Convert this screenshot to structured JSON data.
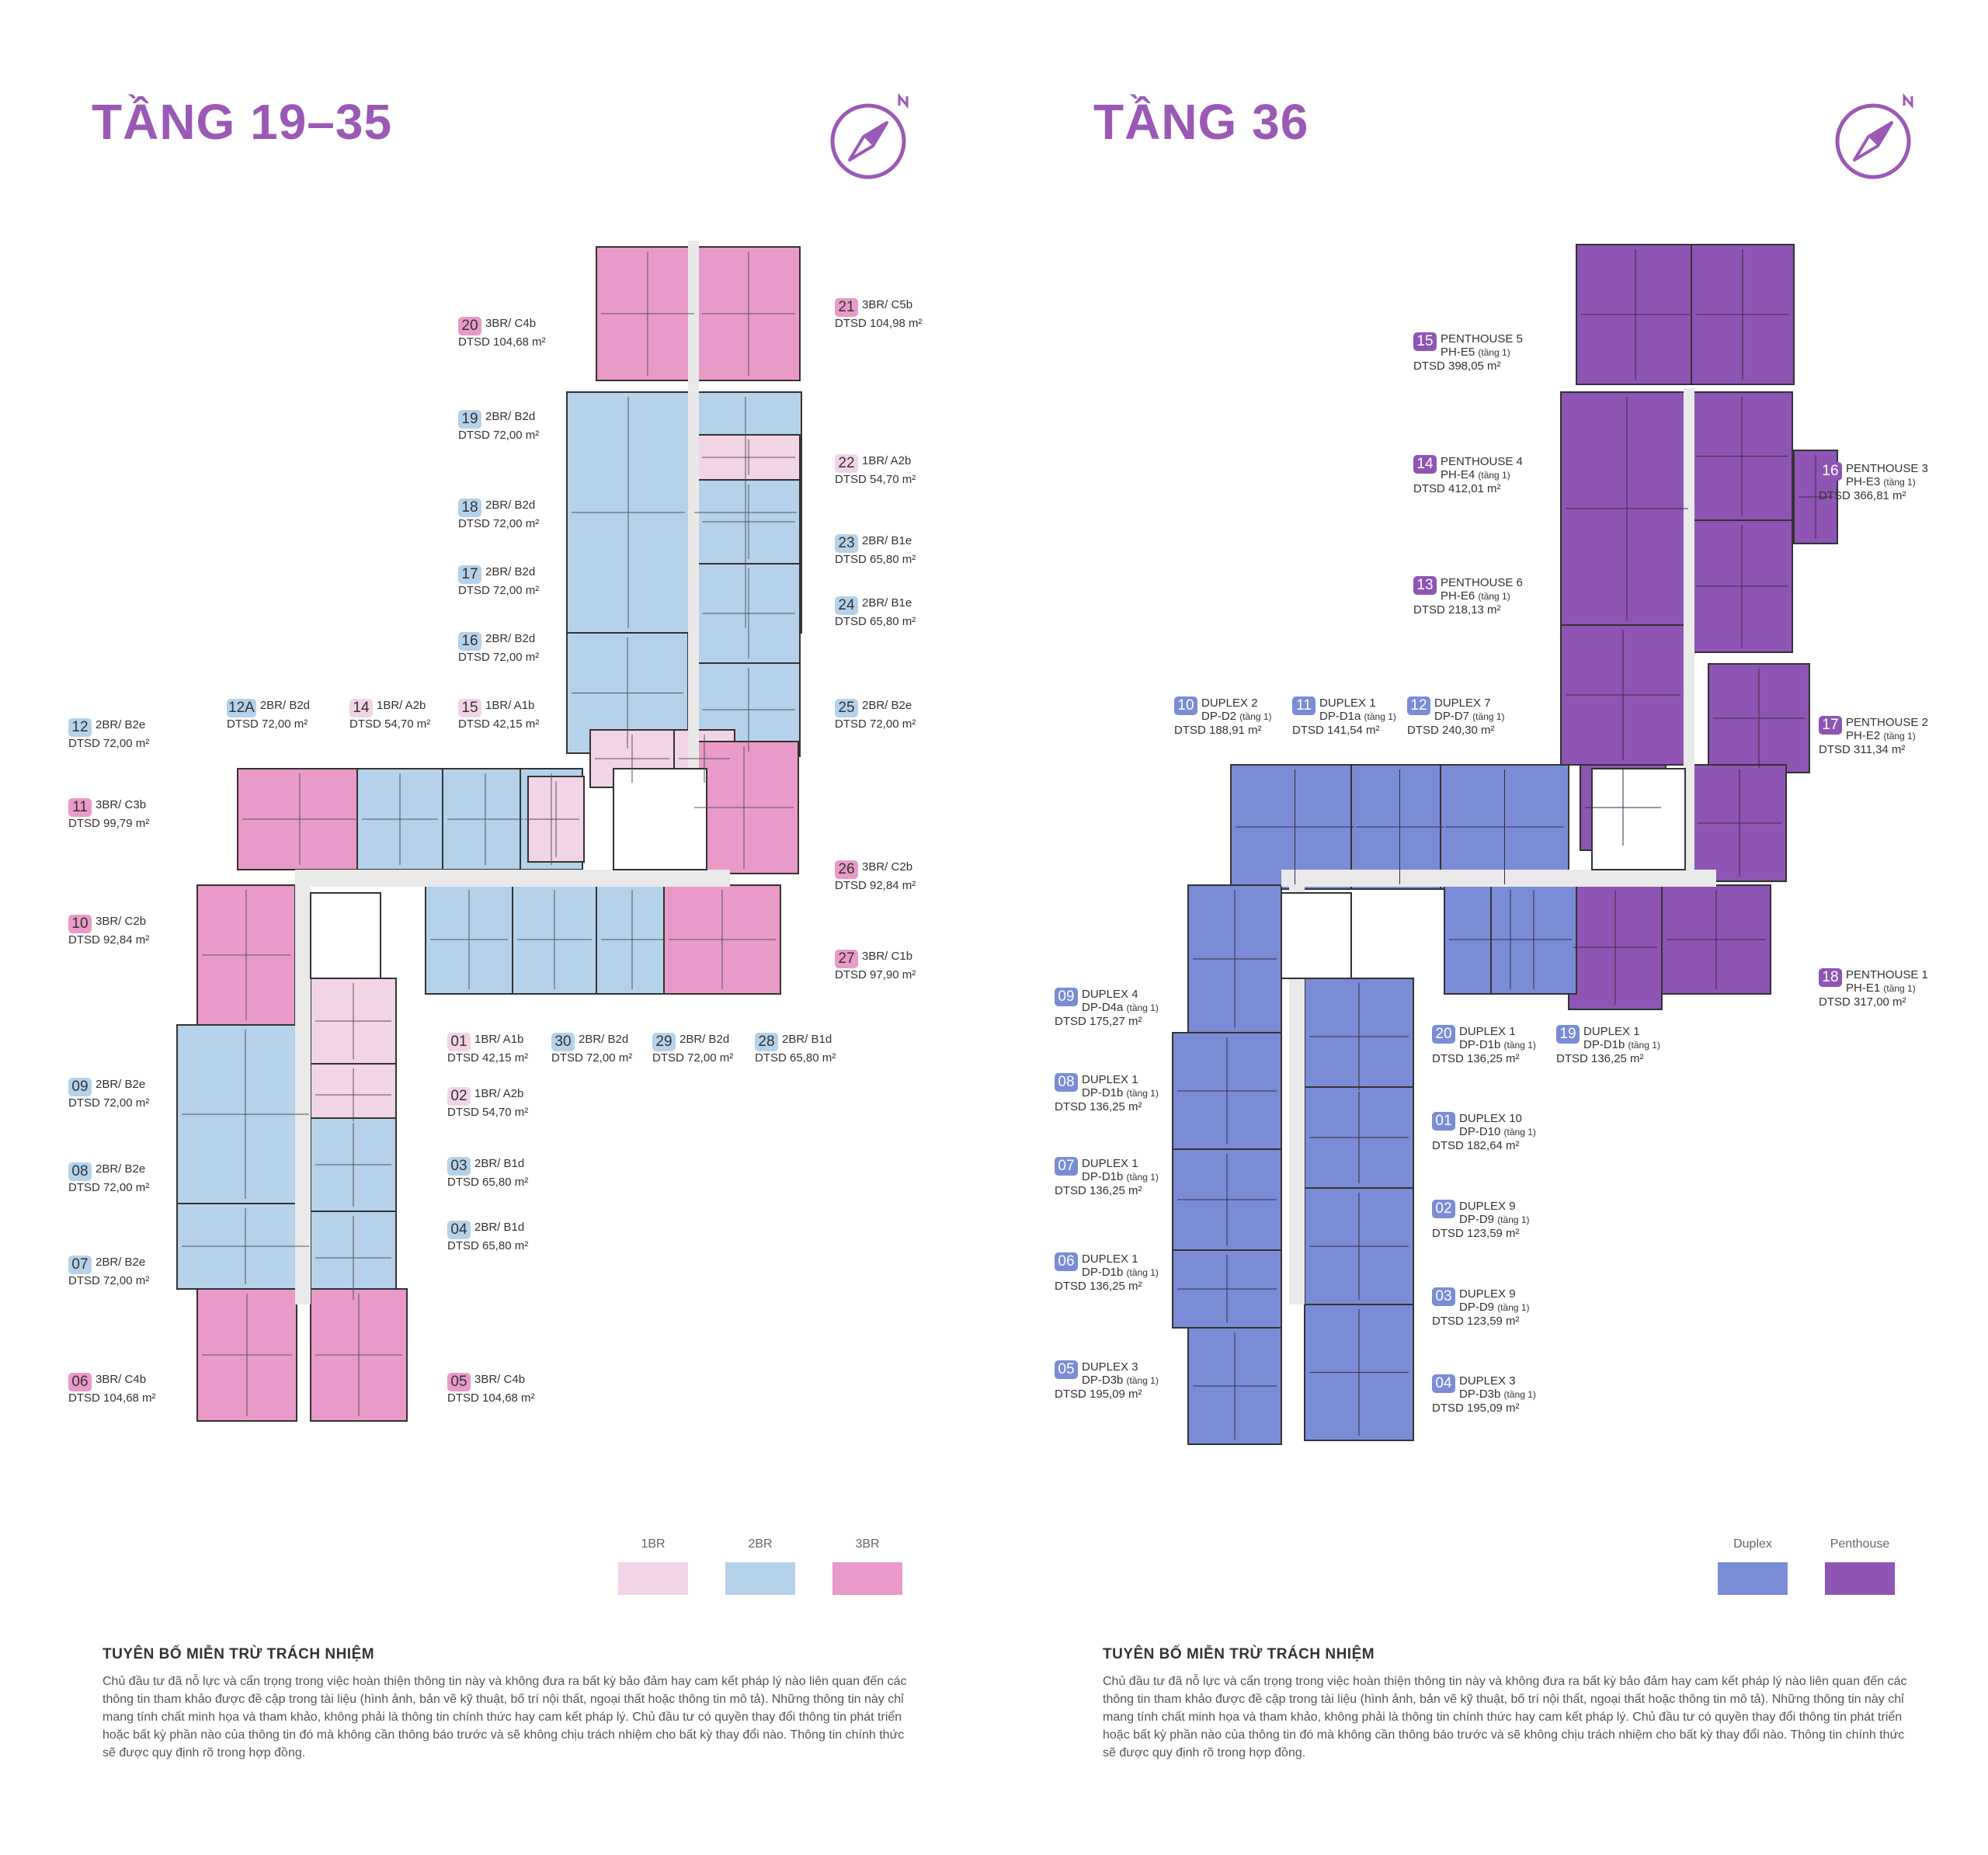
{
  "colors": {
    "title": "#9b59b6",
    "br1": "#f1d4e6",
    "br2": "#b5d2ea",
    "br3": "#e99ac8",
    "duplex": "#7b8cd6",
    "penthouse": "#8e55b4",
    "corridor": "#e9e9e9",
    "wall": "#333333"
  },
  "left": {
    "title": "TẦNG 19–35",
    "compass_icon": "compass-icon",
    "units": [
      {
        "num": "20",
        "type": "3BR/ C4b",
        "area": "DTSD 104,68 m²",
        "cat": "3BR"
      },
      {
        "num": "21",
        "type": "3BR/ C5b",
        "area": "DTSD 104,98 m²",
        "cat": "3BR"
      },
      {
        "num": "19",
        "type": "2BR/ B2d",
        "area": "DTSD 72,00 m²",
        "cat": "2BR"
      },
      {
        "num": "22",
        "type": "1BR/ A2b",
        "area": "DTSD 54,70 m²",
        "cat": "1BR"
      },
      {
        "num": "18",
        "type": "2BR/ B2d",
        "area": "DTSD 72,00 m²",
        "cat": "2BR"
      },
      {
        "num": "23",
        "type": "2BR/ B1e",
        "area": "DTSD 65,80 m²",
        "cat": "2BR"
      },
      {
        "num": "17",
        "type": "2BR/ B2d",
        "area": "DTSD 72,00 m²",
        "cat": "2BR"
      },
      {
        "num": "24",
        "type": "2BR/ B1e",
        "area": "DTSD 65,80 m²",
        "cat": "2BR"
      },
      {
        "num": "16",
        "type": "2BR/ B2d",
        "area": "DTSD 72,00 m²",
        "cat": "2BR"
      },
      {
        "num": "25",
        "type": "2BR/ B2e",
        "area": "DTSD 72,00 m²",
        "cat": "2BR"
      },
      {
        "num": "12A",
        "type": "2BR/ B2d",
        "area": "DTSD 72,00 m²",
        "cat": "2BR"
      },
      {
        "num": "14",
        "type": "1BR/ A2b",
        "area": "DTSD 54,70 m²",
        "cat": "1BR"
      },
      {
        "num": "15",
        "type": "1BR/ A1b",
        "area": "DTSD 42,15 m²",
        "cat": "1BR"
      },
      {
        "num": "12",
        "type": "2BR/ B2e",
        "area": "DTSD 72,00 m²",
        "cat": "2BR"
      },
      {
        "num": "11",
        "type": "3BR/ C3b",
        "area": "DTSD 99,79 m²",
        "cat": "3BR"
      },
      {
        "num": "26",
        "type": "3BR/ C2b",
        "area": "DTSD 92,84 m²",
        "cat": "3BR"
      },
      {
        "num": "10",
        "type": "3BR/ C2b",
        "area": "DTSD 92,84 m²",
        "cat": "3BR"
      },
      {
        "num": "27",
        "type": "3BR/ C1b",
        "area": "DTSD 97,90 m²",
        "cat": "3BR"
      },
      {
        "num": "01",
        "type": "1BR/ A1b",
        "area": "DTSD 42,15 m²",
        "cat": "1BR"
      },
      {
        "num": "30",
        "type": "2BR/ B2d",
        "area": "DTSD 72,00 m²",
        "cat": "2BR"
      },
      {
        "num": "29",
        "type": "2BR/ B2d",
        "area": "DTSD 72,00 m²",
        "cat": "2BR"
      },
      {
        "num": "28",
        "type": "2BR/ B1d",
        "area": "DTSD 65,80 m²",
        "cat": "2BR"
      },
      {
        "num": "09",
        "type": "2BR/ B2e",
        "area": "DTSD 72,00 m²",
        "cat": "2BR"
      },
      {
        "num": "02",
        "type": "1BR/ A2b",
        "area": "DTSD 54,70 m²",
        "cat": "1BR"
      },
      {
        "num": "08",
        "type": "2BR/ B2e",
        "area": "DTSD 72,00 m²",
        "cat": "2BR"
      },
      {
        "num": "03",
        "type": "2BR/ B1d",
        "area": "DTSD 65,80 m²",
        "cat": "2BR"
      },
      {
        "num": "04",
        "type": "2BR/ B1d",
        "area": "DTSD 65,80 m²",
        "cat": "2BR"
      },
      {
        "num": "07",
        "type": "2BR/ B2e",
        "area": "DTSD 72,00 m²",
        "cat": "2BR"
      },
      {
        "num": "06",
        "type": "3BR/ C4b",
        "area": "DTSD 104,68 m²",
        "cat": "3BR"
      },
      {
        "num": "05",
        "type": "3BR/ C4b",
        "area": "DTSD 104,68 m²",
        "cat": "3BR"
      }
    ],
    "legend": [
      {
        "label": "1BR",
        "cat": "br1"
      },
      {
        "label": "2BR",
        "cat": "br2"
      },
      {
        "label": "3BR",
        "cat": "br3"
      }
    ],
    "disclaimer_title": "TUYÊN BỐ MIỄN TRỪ TRÁCH NHIỆM",
    "disclaimer_text": "Chủ đầu tư đã nỗ lực và cẩn trọng trong việc hoàn thiện thông tin này và không đưa ra bất kỳ bảo đảm hay cam kết pháp lý nào liên quan đến các thông tin tham khảo được đề cập trong tài liệu (hình ảnh, bản vẽ kỹ thuật, bố trí nội thất, ngoại thất hoặc thông tin mô tả). Những thông tin này chỉ mang tính chất minh họa và tham khảo, không phải là thông tin chính thức hay cam kết pháp lý. Chủ đầu tư có quyền thay đổi thông tin phát triển hoặc bất kỳ phần nào của thông tin đó mà không cần thông báo trước và sẽ không chịu trách nhiệm cho bất kỳ thay đổi nào. Thông tin chính thức sẽ được quy định rõ trong hợp đồng."
  },
  "right": {
    "title": "TẦNG 36",
    "compass_icon": "compass-icon",
    "units": [
      {
        "num": "15",
        "name": "PENTHOUSE 5",
        "type": "PH-E5",
        "tang": "(tầng 1)",
        "area": "DTSD 398,05 m²",
        "cat": "penthouse"
      },
      {
        "num": "14",
        "name": "PENTHOUSE 4",
        "type": "PH-E4",
        "tang": "(tầng 1)",
        "area": "DTSD 412,01 m²",
        "cat": "penthouse"
      },
      {
        "num": "16",
        "name": "PENTHOUSE 3",
        "type": "PH-E3",
        "tang": "(tầng 1)",
        "area": "DTSD 366,81 m²",
        "cat": "penthouse"
      },
      {
        "num": "13",
        "name": "PENTHOUSE 6",
        "type": "PH-E6",
        "tang": "(tầng 1)",
        "area": "DTSD 218,13 m²",
        "cat": "penthouse"
      },
      {
        "num": "17",
        "name": "PENTHOUSE 2",
        "type": "PH-E2",
        "tang": "(tầng 1)",
        "area": "DTSD 311,34 m²",
        "cat": "penthouse"
      },
      {
        "num": "10",
        "name": "DUPLEX 2",
        "type": "DP-D2",
        "tang": "(tầng 1)",
        "area": "DTSD 188,91 m²",
        "cat": "duplex"
      },
      {
        "num": "11",
        "name": "DUPLEX 1",
        "type": "DP-D1a",
        "tang": "(tầng 1)",
        "area": "DTSD 141,54 m²",
        "cat": "duplex"
      },
      {
        "num": "12",
        "name": "DUPLEX 7",
        "type": "DP-D7",
        "tang": "(tầng 1)",
        "area": "DTSD 240,30 m²",
        "cat": "duplex"
      },
      {
        "num": "18",
        "name": "PENTHOUSE 1",
        "type": "PH-E1",
        "tang": "(tầng 1)",
        "area": "DTSD 317,00 m²",
        "cat": "penthouse"
      },
      {
        "num": "09",
        "name": "DUPLEX 4",
        "type": "DP-D4a",
        "tang": "(tầng 1)",
        "area": "DTSD 175,27 m²",
        "cat": "duplex"
      },
      {
        "num": "20",
        "name": "DUPLEX 1",
        "type": "DP-D1b",
        "tang": "(tầng 1)",
        "area": "DTSD 136,25 m²",
        "cat": "duplex"
      },
      {
        "num": "19",
        "name": "DUPLEX 1",
        "type": "DP-D1b",
        "tang": "(tầng 1)",
        "area": "DTSD 136,25 m²",
        "cat": "duplex"
      },
      {
        "num": "08",
        "name": "DUPLEX 1",
        "type": "DP-D1b",
        "tang": "(tầng 1)",
        "area": "DTSD 136,25 m²",
        "cat": "duplex"
      },
      {
        "num": "01",
        "name": "DUPLEX 10",
        "type": "DP-D10",
        "tang": "(tầng 1)",
        "area": "DTSD 182,64 m²",
        "cat": "duplex"
      },
      {
        "num": "07",
        "name": "DUPLEX 1",
        "type": "DP-D1b",
        "tang": "(tầng 1)",
        "area": "DTSD 136,25 m²",
        "cat": "duplex"
      },
      {
        "num": "02",
        "name": "DUPLEX 9",
        "type": "DP-D9",
        "tang": "(tầng 1)",
        "area": "DTSD 123,59 m²",
        "cat": "duplex"
      },
      {
        "num": "06",
        "name": "DUPLEX 1",
        "type": "DP-D1b",
        "tang": "(tầng 1)",
        "area": "DTSD 136,25 m²",
        "cat": "duplex"
      },
      {
        "num": "03",
        "name": "DUPLEX 9",
        "type": "DP-D9",
        "tang": "(tầng 1)",
        "area": "DTSD 123,59 m²",
        "cat": "duplex"
      },
      {
        "num": "05",
        "name": "DUPLEX 3",
        "type": "DP-D3b",
        "tang": "(tầng 1)",
        "area": "DTSD 195,09 m²",
        "cat": "duplex"
      },
      {
        "num": "04",
        "name": "DUPLEX 3",
        "type": "DP-D3b",
        "tang": "(tầng 1)",
        "area": "DTSD 195,09 m²",
        "cat": "duplex"
      }
    ],
    "legend": [
      {
        "label": "Duplex",
        "cat": "duplex"
      },
      {
        "label": "Penthouse",
        "cat": "penthouse"
      }
    ],
    "disclaimer_title": "TUYÊN BỐ MIỄN TRỪ TRÁCH NHIỆM",
    "disclaimer_text": "Chủ đầu tư đã nỗ lực và cẩn trọng trong việc hoàn thiện thông tin này và không đưa ra bất kỳ bảo đảm hay cam kết pháp lý nào liên quan đến các thông tin tham khảo được đề cập trong tài liệu (hình ảnh, bản vẽ kỹ thuật, bố trí nội thất, ngoại thất hoặc thông tin mô tả). Những thông tin này chỉ mang tính chất minh họa và tham khảo, không phải là thông tin chính thức hay cam kết pháp lý. Chủ đầu tư có quyền thay đổi thông tin phát triển hoặc bất kỳ phần nào của thông tin đó mà không cần thông báo trước và sẽ không chịu trách nhiệm cho bất kỳ thay đổi nào. Thông tin chính thức sẽ được quy định rõ trong hợp đồng."
  }
}
